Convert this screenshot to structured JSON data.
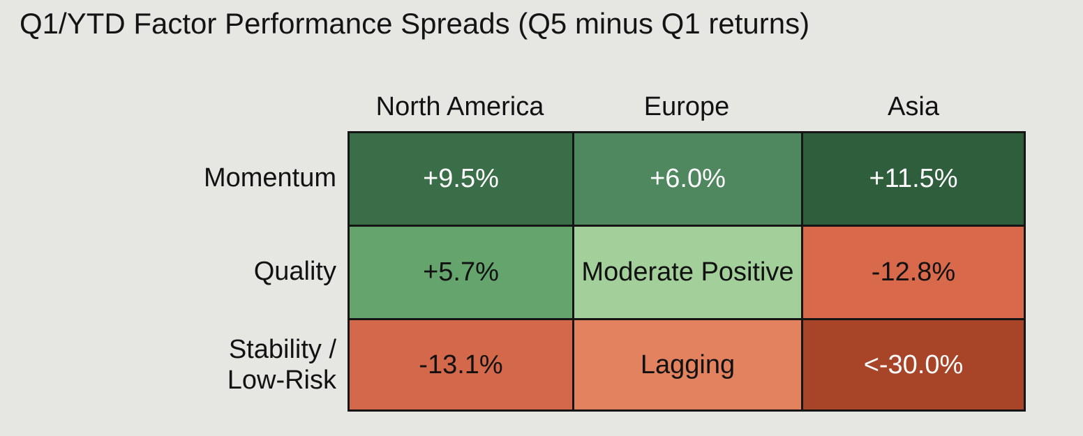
{
  "title": "Q1/YTD Factor Performance Spreads (Q5 minus Q1 returns)",
  "chart_data": {
    "type": "heatmap",
    "title": "Q1/YTD Factor Performance Spreads (Q5 minus Q1 returns)",
    "columns": [
      "North America",
      "Europe",
      "Asia"
    ],
    "rows": [
      {
        "label_lines": [
          "Momentum"
        ],
        "cells": [
          {
            "text": "+9.5%",
            "value": 9.5,
            "color": "#3a6e48",
            "text_color": "#ffffff"
          },
          {
            "text": "+6.0%",
            "value": 6.0,
            "color": "#4f875e",
            "text_color": "#ffffff"
          },
          {
            "text": "+11.5%",
            "value": 11.5,
            "color": "#2f5e3d",
            "text_color": "#ffffff"
          }
        ]
      },
      {
        "label_lines": [
          "Quality"
        ],
        "cells": [
          {
            "text": "+5.7%",
            "value": 5.7,
            "color": "#66a46e",
            "text_color": "#111111"
          },
          {
            "text": "Moderate Positive",
            "value": null,
            "color": "#a3cf9b",
            "text_color": "#111111"
          },
          {
            "text": "-12.8%",
            "value": -12.8,
            "color": "#d86a4b",
            "text_color": "#111111"
          }
        ]
      },
      {
        "label_lines": [
          "Stability /",
          "Low-Risk"
        ],
        "cells": [
          {
            "text": "-13.1%",
            "value": -13.1,
            "color": "#d4684a",
            "text_color": "#111111"
          },
          {
            "text": "Lagging",
            "value": null,
            "color": "#e2825f",
            "text_color": "#111111"
          },
          {
            "text": "<-30.0%",
            "value": -30.0,
            "color": "#a84529",
            "text_color": "#ffffff"
          }
        ]
      }
    ]
  }
}
